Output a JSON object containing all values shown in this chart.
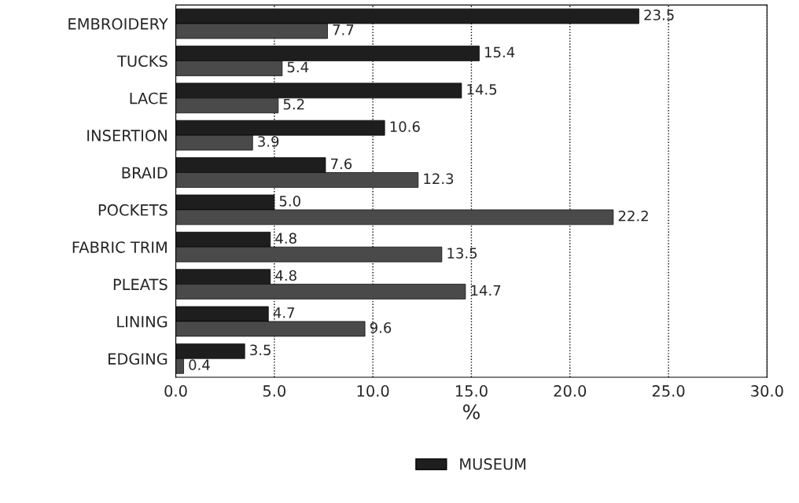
{
  "chart_data": {
    "type": "bar",
    "orientation": "horizontal",
    "xlabel": "%",
    "categories": [
      "EMBROIDERY",
      "TUCKS",
      "LACE",
      "INSERTION",
      "BRAID",
      "POCKETS",
      "FABRIC TRIM",
      "PLEATS",
      "LINING",
      "EDGING"
    ],
    "series": [
      {
        "name": "MUSEUM",
        "color": "#1e1e1e",
        "values": [
          23.5,
          15.4,
          14.5,
          10.6,
          7.6,
          5.0,
          4.8,
          4.8,
          4.7,
          3.5
        ],
        "value_labels": [
          "23.5",
          "15.4",
          "14.5",
          "10.6",
          "7.6",
          "5.0",
          "4.8",
          "4.8",
          "4.7",
          "3.5"
        ]
      },
      {
        "color": "#4a4a4a",
        "values": [
          7.7,
          5.4,
          5.2,
          3.9,
          12.3,
          22.2,
          13.5,
          14.7,
          9.6,
          0.4
        ],
        "value_labels": [
          "7.7",
          "5.4",
          "5.2",
          "3.9",
          "12.3",
          "22.2",
          "13.5",
          "14.7",
          "9.6",
          "0.4"
        ]
      }
    ],
    "xlim": [
      0,
      30
    ],
    "xticks": [
      {
        "value": 0,
        "label": "0.0"
      },
      {
        "value": 5,
        "label": "5.0"
      },
      {
        "value": 10,
        "label": "10.0"
      },
      {
        "value": 15,
        "label": "15.0"
      },
      {
        "value": 20,
        "label": "20.0"
      },
      {
        "value": 25,
        "label": "25.0"
      },
      {
        "value": 30,
        "label": "30.0"
      }
    ],
    "grid": "x",
    "legend": "bottom"
  }
}
